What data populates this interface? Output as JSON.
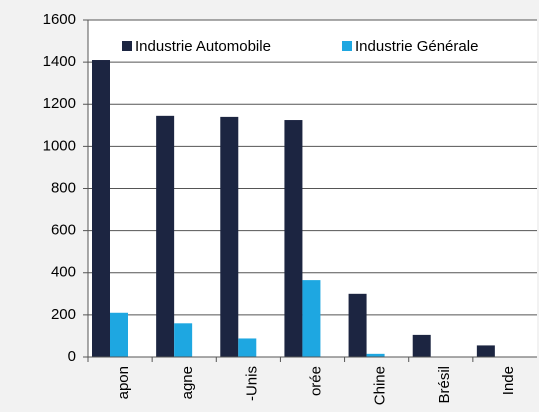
{
  "chart_data": {
    "type": "bar",
    "categories": [
      "apon",
      "agne",
      "-Unis",
      "orée",
      "Chine",
      "Brésil",
      "Inde"
    ],
    "series": [
      {
        "name": "Industrie Automobile",
        "color": "#1c2541",
        "values": [
          1410,
          1145,
          1140,
          1125,
          300,
          105,
          55
        ]
      },
      {
        "name": "Industrie Générale",
        "color": "#1ea7e1",
        "values": [
          210,
          160,
          88,
          365,
          15,
          0,
          0
        ]
      }
    ],
    "ylim": [
      0,
      1600
    ],
    "yticks": [
      0,
      200,
      400,
      600,
      800,
      1000,
      1200,
      1400,
      1600
    ],
    "grid": true,
    "legend": "top-right"
  }
}
